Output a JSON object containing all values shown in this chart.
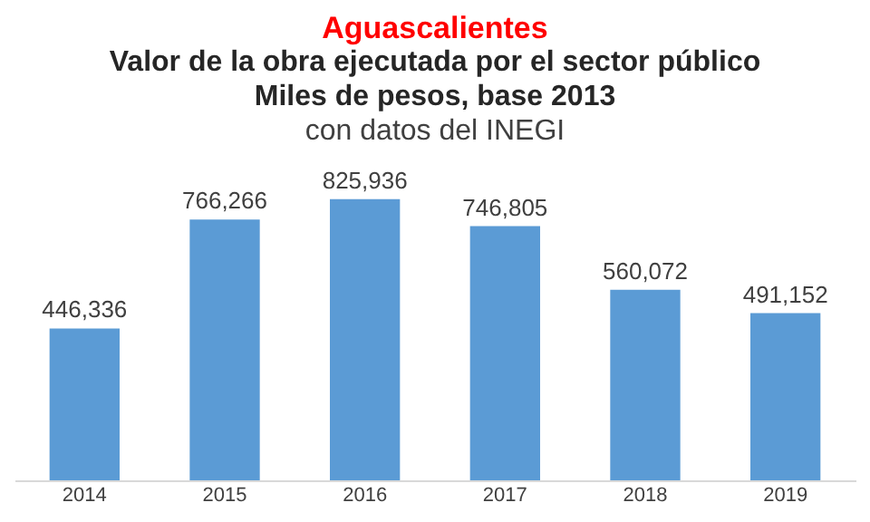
{
  "chart_data": {
    "type": "bar",
    "title": "Aguascalientes",
    "subtitle": "Valor de la obra ejecutada por el sector público\nMiles de pesos, base 2013",
    "annotations": [
      "con datos del INEGI"
    ],
    "categories": [
      "2014",
      "2015",
      "2016",
      "2017",
      "2018",
      "2019"
    ],
    "values": [
      446336,
      766266,
      825936,
      746805,
      560072,
      491152
    ],
    "value_labels": [
      "446,336",
      "766,266",
      "825,936",
      "746,805",
      "560,072",
      "491,152"
    ],
    "color": "#5b9bd5",
    "grid": false
  }
}
